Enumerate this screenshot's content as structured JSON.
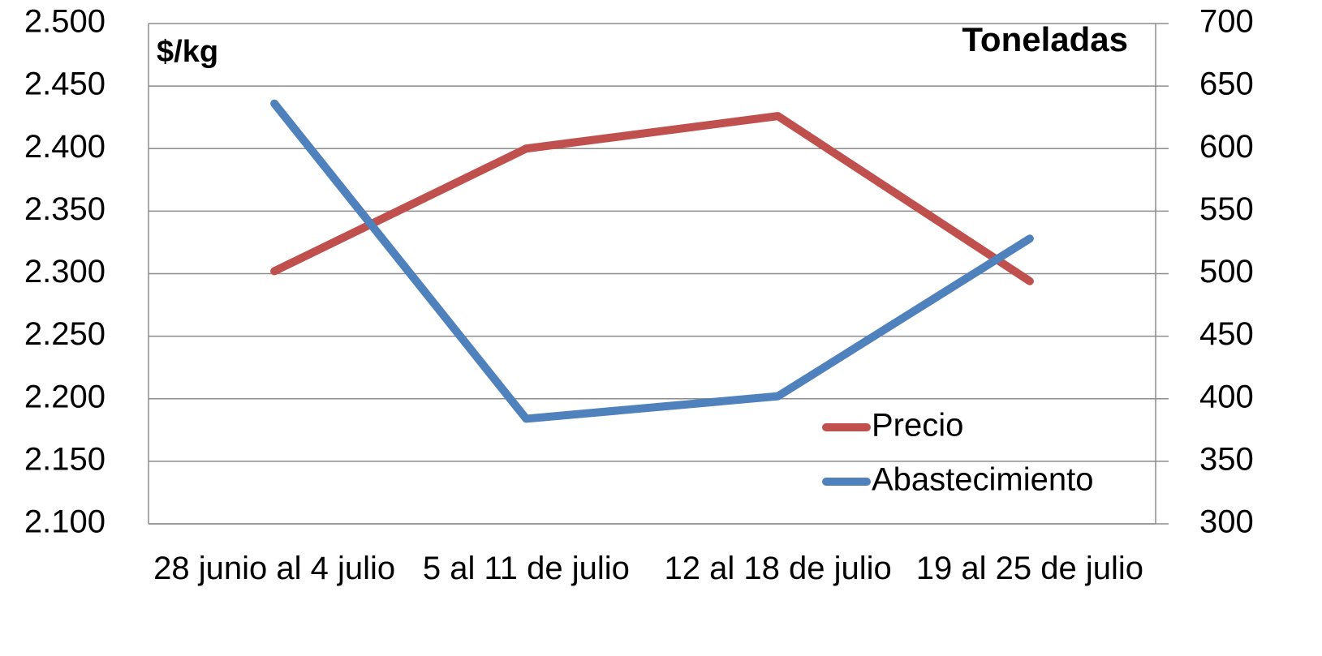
{
  "chart_data": {
    "type": "line",
    "y_label": "$/kg",
    "y2_label": "Toneladas",
    "categories": [
      "28 junio al 4 julio",
      "5 al 11 de julio",
      "12 al 18 de julio",
      "19 al 25 de julio"
    ],
    "series": [
      {
        "name": "Precio",
        "color": "#c0504d",
        "values": [
          2302,
          2400,
          2426,
          2294
        ]
      },
      {
        "name": "Abastecimiento",
        "color": "#4f81bd",
        "axis": "y2",
        "values": [
          636,
          384,
          402,
          528
        ]
      }
    ],
    "ylim": [
      2100,
      2500
    ],
    "yticks": [
      {
        "value": 2100,
        "label": "2.100"
      },
      {
        "value": 2150,
        "label": "2.150"
      },
      {
        "value": 2200,
        "label": "2.200"
      },
      {
        "value": 2250,
        "label": "2.250"
      },
      {
        "value": 2300,
        "label": "2.300"
      },
      {
        "value": 2350,
        "label": "2.350"
      },
      {
        "value": 2400,
        "label": "2.400"
      },
      {
        "value": 2450,
        "label": "2.450"
      },
      {
        "value": 2500,
        "label": "2.500"
      }
    ],
    "y2lim": [
      300,
      700
    ],
    "y2ticks": [
      300,
      350,
      400,
      450,
      500,
      550,
      600,
      650,
      700
    ],
    "grid": true
  }
}
